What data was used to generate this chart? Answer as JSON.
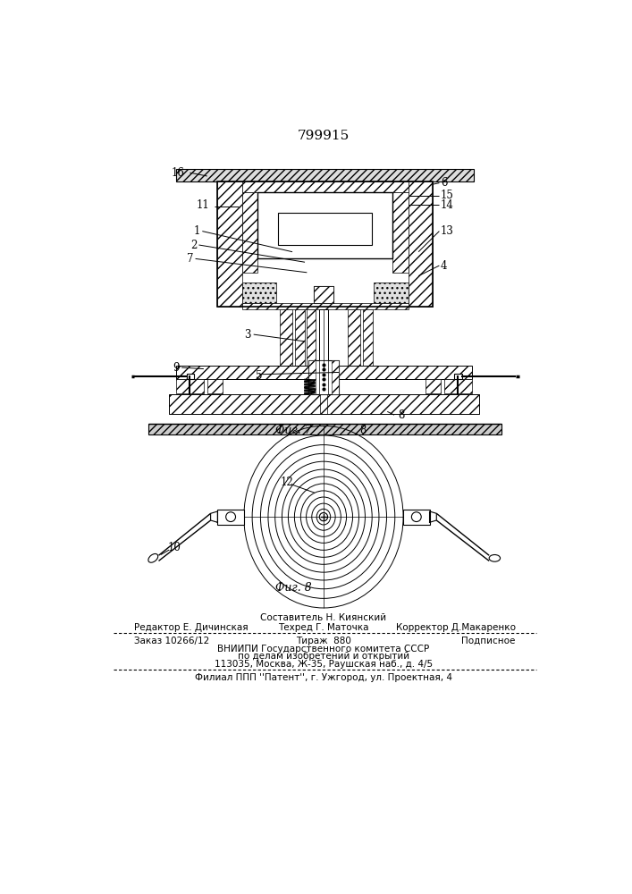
{
  "patent_number": "799915",
  "fig7_label": "Фиг. 7",
  "fig8_label": "Фиг. 8",
  "editor_line": "Редактор Е. Дичинская",
  "composer_line": "Составитель Н. Киянский",
  "techred_line": "Техред Г. Маточка",
  "corrector_line": "Корректор Д.Макаренко",
  "order_line": "Заказ 10266/12",
  "tirazh_line": "Тираж  880",
  "podpisnoe_line": "Подписное",
  "vniip_line": "ВНИИПИ Государственного комитета СССР",
  "po_delam_line": "по делам изобретений и открытий",
  "address_line": "113035, Москва, Ж-35, Раушская наб., д. 4/5",
  "filial_line": "Филиал ППП ''Патент'', г. Ужгород, ул. Проектная, 4",
  "bg_color": "#ffffff"
}
